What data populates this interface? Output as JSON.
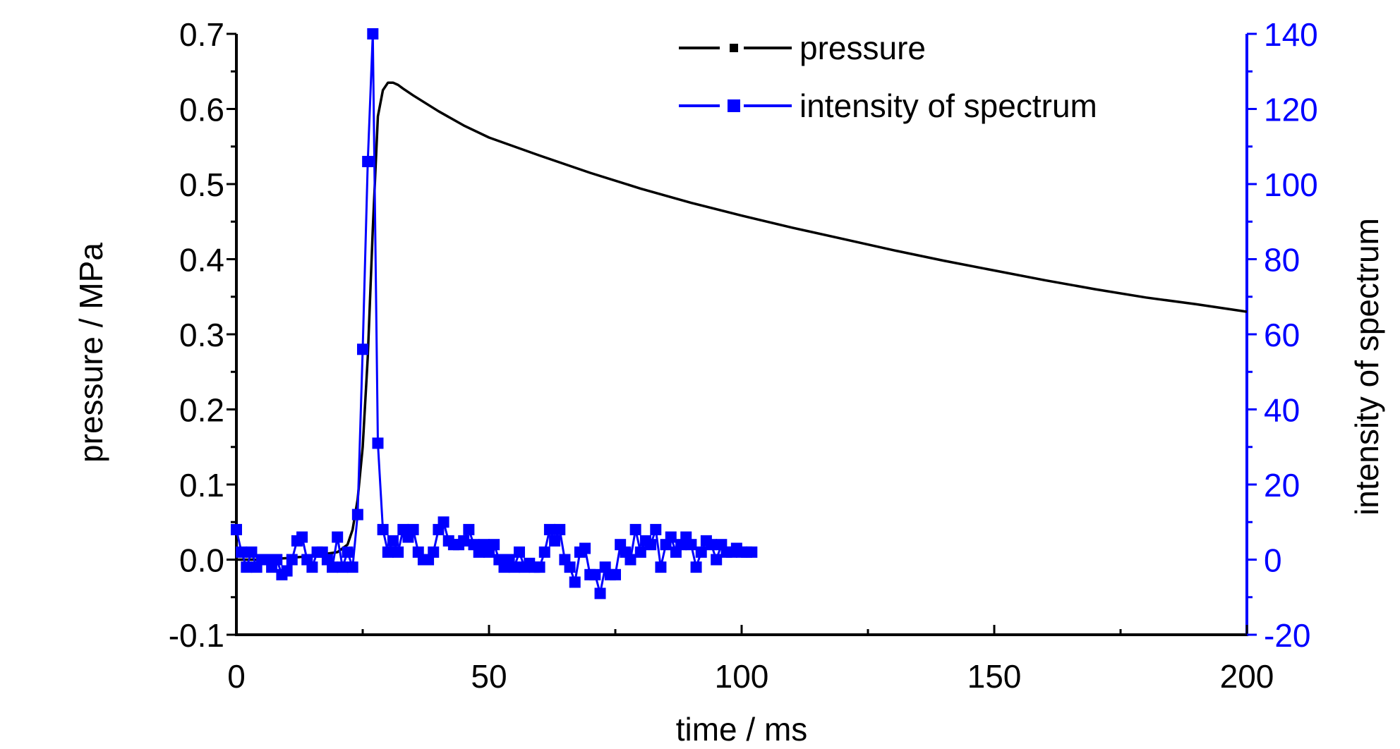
{
  "chart_data": {
    "type": "line",
    "title": "",
    "xlabel": "time / ms",
    "ylabel_left": "pressure / MPa",
    "ylabel_right": "intensity of spectrum",
    "xlim": [
      0,
      200
    ],
    "ylim_left": [
      -0.1,
      0.7
    ],
    "ylim_right": [
      -20,
      140
    ],
    "x_ticks": [
      "0",
      "50",
      "100",
      "150",
      "200"
    ],
    "y_left_ticks": [
      "-0.1",
      "0.0",
      "0.1",
      "0.2",
      "0.3",
      "0.4",
      "0.5",
      "0.6",
      "0.7"
    ],
    "y_right_ticks": [
      "-20",
      "0",
      "20",
      "40",
      "60",
      "80",
      "100",
      "120",
      "140"
    ],
    "grid": false,
    "legend_position": "top-center",
    "colors": {
      "left_axis": "#000000",
      "right_axis": "#0000ff"
    },
    "series": [
      {
        "name": "pressure",
        "axis": "left",
        "color": "#000000",
        "marker": "small-square",
        "x": [
          0,
          5,
          10,
          15,
          20,
          22,
          23,
          24,
          25,
          26,
          27,
          28,
          29,
          30,
          31,
          32,
          33,
          35,
          40,
          45,
          50,
          60,
          70,
          80,
          90,
          100,
          110,
          120,
          130,
          140,
          150,
          160,
          170,
          180,
          190,
          200
        ],
        "y": [
          0.0,
          0.0,
          0.002,
          0.005,
          0.01,
          0.02,
          0.04,
          0.08,
          0.15,
          0.27,
          0.44,
          0.59,
          0.625,
          0.635,
          0.635,
          0.632,
          0.627,
          0.618,
          0.597,
          0.578,
          0.562,
          0.538,
          0.515,
          0.494,
          0.475,
          0.458,
          0.442,
          0.427,
          0.412,
          0.398,
          0.385,
          0.372,
          0.36,
          0.349,
          0.34,
          0.33
        ]
      },
      {
        "name": "intensity of spectrum",
        "axis": "right",
        "color": "#0000ff",
        "marker": "square",
        "x": [
          0,
          1,
          2,
          3,
          4,
          5,
          6,
          7,
          8,
          9,
          10,
          11,
          12,
          13,
          14,
          15,
          16,
          17,
          18,
          19,
          20,
          21,
          22,
          23,
          24,
          25,
          26,
          27,
          28,
          29,
          30,
          31,
          32,
          33,
          34,
          35,
          36,
          37,
          38,
          39,
          40,
          41,
          42,
          43,
          44,
          45,
          46,
          47,
          48,
          49,
          50,
          51,
          52,
          53,
          54,
          55,
          56,
          57,
          58,
          59,
          60,
          61,
          62,
          63,
          64,
          65,
          66,
          67,
          68,
          69,
          70,
          71,
          72,
          73,
          74,
          75,
          76,
          77,
          78,
          79,
          80,
          81,
          82,
          83,
          84,
          85,
          86,
          87,
          88,
          89,
          90,
          91,
          92,
          93,
          94,
          95,
          96,
          97,
          98,
          99,
          100,
          101,
          102
        ],
        "y": [
          8,
          2,
          -2,
          2,
          -2,
          0,
          0,
          -2,
          0,
          -4,
          -3,
          0,
          5,
          6,
          0,
          -2,
          2,
          2,
          0,
          -2,
          6,
          -2,
          2,
          -2,
          12,
          56,
          106,
          140,
          31,
          8,
          2,
          5,
          2,
          8,
          6,
          8,
          2,
          0,
          0,
          2,
          8,
          10,
          5,
          4,
          4,
          5,
          8,
          4,
          2,
          4,
          2,
          4,
          0,
          -2,
          0,
          -2,
          2,
          -2,
          -1,
          -2,
          -2,
          2,
          8,
          5,
          8,
          0,
          -2,
          -6,
          2,
          3,
          -4,
          -4,
          -9,
          -2,
          -4,
          -4,
          4,
          2,
          0,
          8,
          2,
          5,
          4,
          8,
          -2,
          4,
          6,
          2,
          4,
          6,
          4,
          -2,
          2,
          5,
          4,
          0,
          4,
          2,
          2,
          3,
          2,
          2,
          2
        ]
      }
    ]
  }
}
